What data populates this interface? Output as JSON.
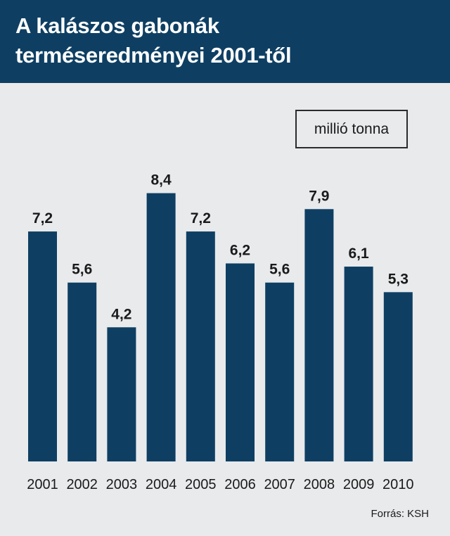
{
  "title_line1": "A kalászos gabonák",
  "title_line2": "terméseredményei 2001-től",
  "unit_label": "millió tonna",
  "source": "Forrás: KSH",
  "colors": {
    "header": "#0e3f63",
    "bar": "#0e3f63",
    "background": "#e8eaec"
  },
  "chart_data": {
    "type": "bar",
    "categories": [
      "2001",
      "2002",
      "2003",
      "2004",
      "2005",
      "2006",
      "2007",
      "2008",
      "2009",
      "2010"
    ],
    "values": [
      7.2,
      5.6,
      4.2,
      8.4,
      7.2,
      6.2,
      5.6,
      7.9,
      6.1,
      5.3
    ],
    "value_labels": [
      "7,2",
      "5,6",
      "4,2",
      "8,4",
      "7,2",
      "6,2",
      "5,6",
      "7,9",
      "6,1",
      "5,3"
    ],
    "title": "A kalászos gabonák terméseredményei 2001-től",
    "xlabel": "",
    "ylabel": "millió tonna",
    "ylim": [
      0,
      9.25
    ],
    "grid": false,
    "legend": "none"
  }
}
